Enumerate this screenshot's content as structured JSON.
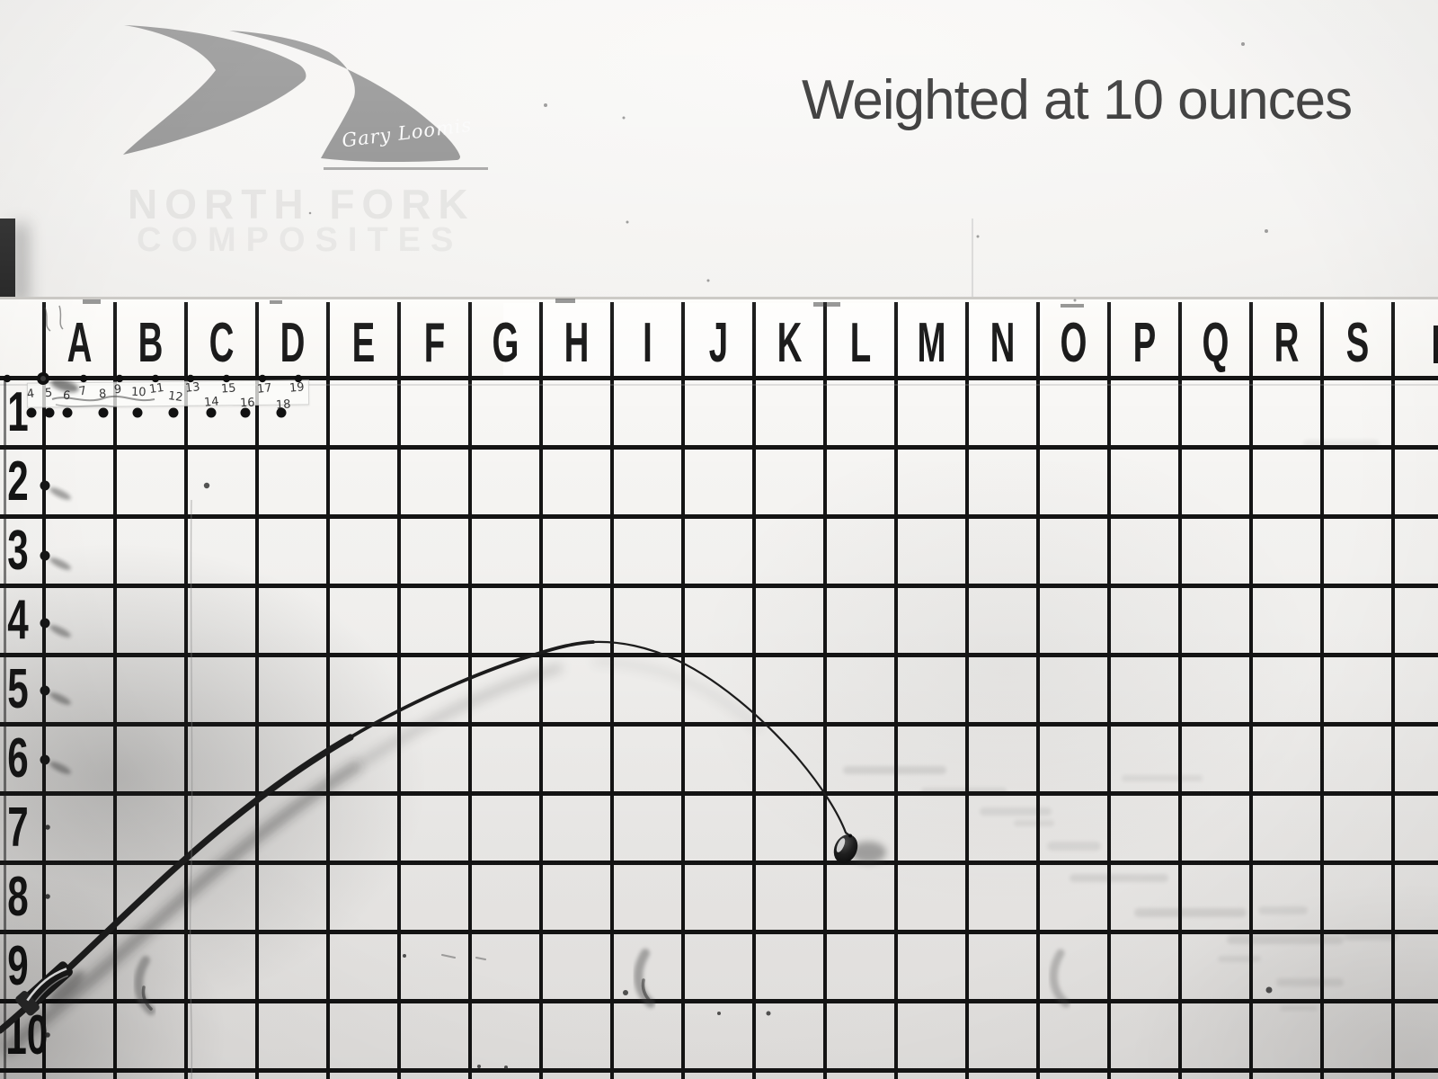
{
  "header": {
    "title": "Weighted at 10 ounces",
    "logo": {
      "signature": "Gary Loomis",
      "ghost_text_line1": "NORTH FORK",
      "ghost_text_line2": "COMPOSITES"
    }
  },
  "grid": {
    "column_letters": [
      "A",
      "B",
      "C",
      "D",
      "E",
      "F",
      "G",
      "H",
      "I",
      "J",
      "K",
      "L",
      "M",
      "N",
      "O",
      "P",
      "Q",
      "R",
      "S"
    ],
    "row_numbers": [
      "1",
      "2",
      "3",
      "4",
      "5",
      "6",
      "7",
      "8",
      "9",
      "10"
    ],
    "ruler_tape": {
      "upper_numbers": [
        "4",
        "5",
        "6",
        "7",
        "8",
        "9",
        "10",
        "11",
        "12",
        "13",
        "15",
        "17",
        "19"
      ],
      "lower_numbers": [
        "14",
        "16",
        "18"
      ]
    }
  },
  "colors": {
    "grid_line": "#141414",
    "logo_gray": "#8a8a8a",
    "wall": "#f5f4f2",
    "ink": "#1a1a1a",
    "weight": "#1e1e1e"
  }
}
